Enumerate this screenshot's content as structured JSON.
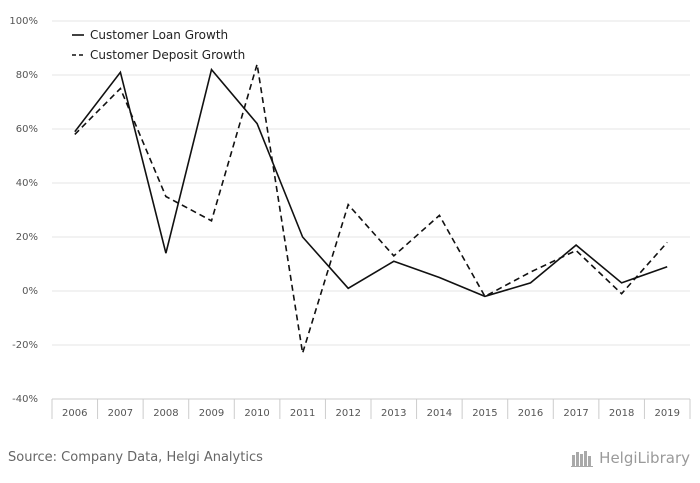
{
  "chart_data": {
    "type": "line",
    "x": [
      "2006",
      "2007",
      "2008",
      "2009",
      "2010",
      "2011",
      "2012",
      "2013",
      "2014",
      "2015",
      "2016",
      "2017",
      "2018",
      "2019"
    ],
    "series": [
      {
        "name": "Customer Loan Growth",
        "style": "solid",
        "values": [
          59,
          81,
          14,
          82,
          62,
          20,
          1,
          11,
          5,
          -2,
          3,
          17,
          3,
          9
        ]
      },
      {
        "name": "Customer Deposit Growth",
        "style": "dashed",
        "values": [
          58,
          75,
          35,
          26,
          84,
          -23,
          32,
          13,
          28,
          -2,
          7,
          15,
          -1,
          18
        ]
      }
    ],
    "ylim": [
      -40,
      100
    ],
    "yticks": [
      -40,
      -20,
      0,
      20,
      40,
      60,
      80,
      100
    ],
    "ytick_labels": [
      "-40%",
      "-20%",
      "0%",
      "20%",
      "40%",
      "60%",
      "80%",
      "100%"
    ],
    "grid": true,
    "legend_position": "top-left"
  },
  "colors": {
    "line": "#111111",
    "grid": "#e6e6e6",
    "axis": "#cccccc"
  },
  "footer": {
    "source": "Source: Company Data, Helgi Analytics",
    "brand": "HelgiLibrary"
  }
}
